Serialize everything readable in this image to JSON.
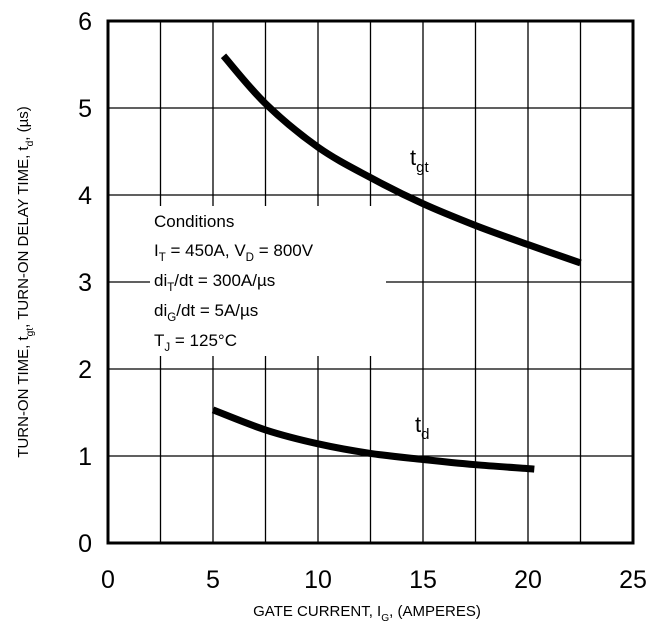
{
  "chart_data": {
    "type": "line",
    "xlabel": {
      "main": "GATE CURRENT, I",
      "sub": "G",
      "tail": ", (AMPERES)"
    },
    "ylabel": {
      "p1": "TURN-ON TIME, t",
      "s1": "gt",
      "p2": ", TURN-ON DELAY TIME, t",
      "s2": "d",
      "p3": ", (µs)"
    },
    "xlim": [
      0,
      25
    ],
    "ylim": [
      0,
      6
    ],
    "x_ticks": [
      "0",
      "5",
      "10",
      "15",
      "20",
      "25"
    ],
    "y_ticks": [
      "0",
      "1",
      "2",
      "3",
      "4",
      "5",
      "6"
    ],
    "grid": true,
    "series": [
      {
        "name": "t",
        "name_sub": "gt",
        "color": "#000000",
        "x": [
          5.5,
          7.5,
          10,
          12.5,
          15,
          17.5,
          20,
          22.5
        ],
        "y": [
          5.6,
          5.05,
          4.55,
          4.2,
          3.9,
          3.65,
          3.43,
          3.22
        ]
      },
      {
        "name": "t",
        "name_sub": "d",
        "color": "#000000",
        "x": [
          5,
          7.5,
          10,
          12.5,
          15,
          17.5,
          20.3
        ],
        "y": [
          1.53,
          1.3,
          1.14,
          1.03,
          0.96,
          0.9,
          0.85
        ]
      }
    ],
    "annotation": {
      "title": "Conditions",
      "l1": {
        "a": "I",
        "a_sub": "T",
        "b": " = 450A, V",
        "b_sub": "D",
        "c": " = 800V"
      },
      "l2": {
        "a": "di",
        "a_sub": "T",
        "b": "/dt = 300A/µs"
      },
      "l3": {
        "a": "di",
        "a_sub": "G",
        "b": "/dt = 5A/µs"
      },
      "l4": {
        "a": "T",
        "a_sub": "J",
        "b": " = 125°C"
      }
    }
  }
}
